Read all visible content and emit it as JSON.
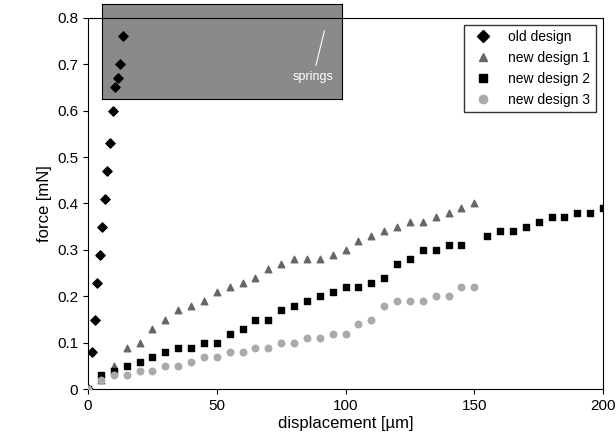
{
  "chart_data": {
    "type": "scatter",
    "x_label": "displacement [µm]",
    "y_label": "force [mN]",
    "annotations": [
      "springs"
    ],
    "xlim": [
      0,
      200
    ],
    "xticks": [
      0,
      50,
      100,
      150,
      200
    ],
    "ylim": [
      0,
      0.8
    ],
    "yticks": [
      0,
      0.1,
      0.2,
      0.3,
      0.4,
      0.5,
      0.6,
      0.7,
      0.8
    ],
    "grid": false,
    "legend": "upper right",
    "series": [
      {
        "name": "old design",
        "color": "#000000",
        "marker": "diamond",
        "x": [
          0,
          1.5,
          2.5,
          3.5,
          4.5,
          5.5,
          6.5,
          7.5,
          8.5,
          9.5,
          10.5,
          11.5,
          12.5,
          13.5
        ],
        "values": [
          0,
          0.08,
          0.15,
          0.23,
          0.29,
          0.35,
          0.41,
          0.47,
          0.53,
          0.6,
          0.65,
          0.67,
          0.7,
          0.76
        ]
      },
      {
        "name": "new design 1",
        "color": "#666666",
        "marker": "triangle",
        "x": [
          0,
          5,
          10,
          15,
          20,
          25,
          30,
          35,
          40,
          45,
          50,
          55,
          60,
          65,
          70,
          75,
          80,
          85,
          90,
          95,
          100,
          105,
          110,
          115,
          120,
          125,
          130,
          135,
          140,
          145,
          150
        ],
        "values": [
          0,
          0.02,
          0.05,
          0.09,
          0.1,
          0.13,
          0.15,
          0.17,
          0.18,
          0.19,
          0.21,
          0.22,
          0.23,
          0.24,
          0.26,
          0.27,
          0.28,
          0.28,
          0.28,
          0.29,
          0.3,
          0.32,
          0.33,
          0.34,
          0.35,
          0.36,
          0.36,
          0.37,
          0.38,
          0.39,
          0.4
        ]
      },
      {
        "name": "new design 2",
        "color": "#000000",
        "marker": "square",
        "x": [
          0,
          5,
          10,
          15,
          20,
          25,
          30,
          35,
          40,
          45,
          50,
          55,
          60,
          65,
          70,
          75,
          80,
          85,
          90,
          95,
          100,
          105,
          110,
          115,
          120,
          125,
          130,
          135,
          140,
          145,
          155,
          160,
          165,
          170,
          175,
          180,
          185,
          190,
          195,
          200
        ],
        "values": [
          0,
          0.03,
          0.04,
          0.05,
          0.06,
          0.07,
          0.08,
          0.09,
          0.09,
          0.1,
          0.1,
          0.12,
          0.13,
          0.15,
          0.15,
          0.17,
          0.18,
          0.19,
          0.2,
          0.21,
          0.22,
          0.22,
          0.23,
          0.24,
          0.27,
          0.28,
          0.3,
          0.3,
          0.31,
          0.31,
          0.33,
          0.34,
          0.34,
          0.35,
          0.36,
          0.37,
          0.37,
          0.38,
          0.38,
          0.39
        ]
      },
      {
        "name": "new design 3",
        "color": "#aaaaaa",
        "marker": "circle",
        "x": [
          0,
          5,
          10,
          15,
          20,
          25,
          30,
          35,
          40,
          45,
          50,
          55,
          60,
          65,
          70,
          75,
          80,
          85,
          90,
          95,
          100,
          105,
          110,
          115,
          120,
          125,
          130,
          135,
          140,
          145,
          150
        ],
        "values": [
          0,
          0.02,
          0.03,
          0.03,
          0.04,
          0.04,
          0.05,
          0.05,
          0.06,
          0.07,
          0.07,
          0.08,
          0.08,
          0.09,
          0.09,
          0.1,
          0.1,
          0.11,
          0.11,
          0.12,
          0.12,
          0.14,
          0.15,
          0.18,
          0.19,
          0.19,
          0.19,
          0.2,
          0.2,
          0.22,
          0.22
        ]
      }
    ]
  }
}
